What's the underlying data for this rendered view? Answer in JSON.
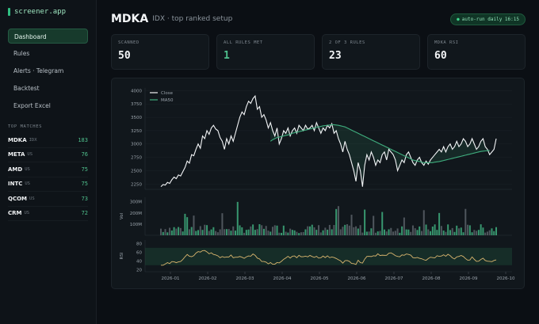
{
  "sidebar": {
    "brand": "screener.app",
    "nav": [
      "Dashboard",
      "Rules",
      "Alerts · Telegram",
      "Backtest",
      "Export Excel"
    ],
    "active_index": 0,
    "section_label": "TOP MATCHES",
    "matches": [
      {
        "ticker": "MDKA",
        "exchange": "IDX",
        "score": "183"
      },
      {
        "ticker": "META",
        "exchange": "US",
        "score": "76"
      },
      {
        "ticker": "AMD",
        "exchange": "US",
        "score": "75"
      },
      {
        "ticker": "INTC",
        "exchange": "US",
        "score": "75"
      },
      {
        "ticker": "QCOM",
        "exchange": "US",
        "score": "73"
      },
      {
        "ticker": "CRM",
        "exchange": "US",
        "score": "72"
      }
    ]
  },
  "header": {
    "title": "MDKA",
    "subtitle": "IDX · top ranked setup",
    "badge": "auto-run daily 16:15"
  },
  "stats": [
    {
      "label": "SCANNED",
      "value": "50"
    },
    {
      "label": "ALL RULES MET",
      "value": "1"
    },
    {
      "label": "2 OF 3 RULES",
      "value": "23"
    },
    {
      "label": "MDKA RSI",
      "value": "60"
    }
  ],
  "colors": {
    "accent": "#4fc08d",
    "close": "#f2f4f6",
    "ma": "#3fae7e",
    "rsi": "#d9b56e",
    "vol_up": "#3fae7e",
    "vol_down": "#5b6168"
  },
  "chart_data": {
    "type": "line",
    "price": {
      "series": [
        {
          "name": "Close"
        },
        {
          "name": "MA50"
        }
      ],
      "yticks": [
        "4000",
        "3750",
        "3500",
        "3250",
        "3000",
        "2750",
        "2500",
        "2250"
      ],
      "ylim": [
        2150,
        4050
      ],
      "close": [
        2200,
        2240,
        2230,
        2280,
        2260,
        2330,
        2380,
        2350,
        2420,
        2400,
        2480,
        2560,
        2680,
        2640,
        2800,
        2780,
        2900,
        3000,
        2920,
        3150,
        3100,
        3250,
        3180,
        3300,
        3350,
        3280,
        3250,
        3120,
        3050,
        2900,
        3100,
        3000,
        3150,
        3050,
        3200,
        3350,
        3500,
        3600,
        3550,
        3700,
        3800,
        3760,
        3850,
        3900,
        3650,
        3700,
        3500,
        3550,
        3450,
        3300,
        3400,
        3250,
        3150,
        3300,
        3000,
        3100,
        3250,
        3200,
        3300,
        3150,
        3250,
        3300,
        3200,
        3350,
        3300,
        3250,
        3350,
        3280,
        3300,
        3350,
        3250,
        3400,
        3300,
        3200,
        3300,
        3250,
        3350,
        3300,
        3380,
        3200,
        3250,
        3100,
        3000,
        2850,
        3050,
        2900,
        2800,
        2650,
        2500,
        2300,
        2650,
        2500,
        2200,
        2600,
        2800,
        2700,
        2850,
        2750,
        2600,
        2700,
        2650,
        2800,
        2850,
        2700,
        2900,
        2850,
        2800,
        2700,
        2500,
        2600,
        2700,
        2650,
        2800,
        2850,
        2750,
        2650,
        2600,
        2700,
        2750,
        2650,
        2600,
        2680,
        2620,
        2700,
        2750,
        2800,
        2850,
        2900,
        2850,
        2950,
        2850,
        2950,
        3000,
        2900,
        2950,
        3050,
        2950,
        3000,
        3100,
        3050,
        2950,
        3000,
        3100,
        3000,
        2900,
        2950,
        3050,
        3100,
        2950,
        2900,
        2800,
        2850,
        2900,
        3100
      ],
      "ma": [
        3050,
        3080,
        3100,
        3120,
        3130,
        3140,
        3150,
        3160,
        3170,
        3180,
        3200,
        3210,
        3220,
        3230,
        3240,
        3250,
        3260,
        3270,
        3280,
        3290,
        3300,
        3310,
        3320,
        3330,
        3340,
        3345,
        3350,
        3355,
        3360,
        3360,
        3355,
        3350,
        3340,
        3330,
        3320,
        3300,
        3280,
        3260,
        3240,
        3220,
        3200,
        3180,
        3160,
        3140,
        3120,
        3100,
        3080,
        3060,
        3040,
        3020,
        3000,
        2980,
        2960,
        2940,
        2920,
        2900,
        2880,
        2860,
        2840,
        2820,
        2800,
        2780,
        2760,
        2740,
        2720,
        2700,
        2690,
        2680,
        2670,
        2660,
        2650,
        2650,
        2650,
        2650,
        2650,
        2660,
        2665,
        2670,
        2680,
        2690,
        2700,
        2710,
        2720,
        2730,
        2740,
        2750,
        2760,
        2770,
        2780,
        2790,
        2800,
        2810,
        2820,
        2830,
        2840,
        2850,
        2860,
        2865,
        2870,
        2875,
        2880
      ],
      "ma_start": 50
    },
    "volume": {
      "ylabel": "Vol",
      "yticks": [
        "300M",
        "200M",
        "100M"
      ],
      "ylim": [
        0,
        340
      ]
    },
    "rsi": {
      "ylabel": "RSI",
      "yticks": [
        "80",
        "60",
        "40",
        "20"
      ],
      "ylim": [
        15,
        88
      ],
      "band": [
        30,
        70
      ]
    },
    "xticks": [
      "2026-01",
      "2026-02",
      "2026-03",
      "2026-04",
      "2026-05",
      "2026-06",
      "2026-07",
      "2026-08",
      "2026-09",
      "2026-10"
    ]
  }
}
